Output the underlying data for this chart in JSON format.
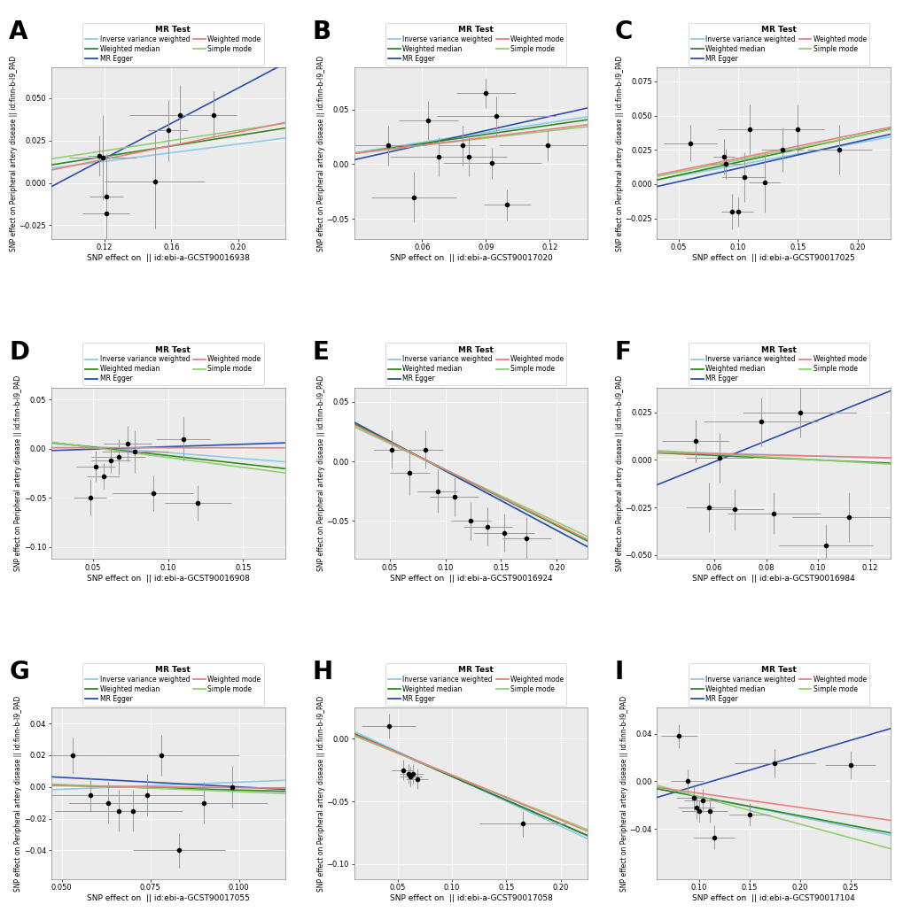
{
  "panels": [
    {
      "label": "A",
      "xlabel": "SNP effect on  || id:ebi-a-GCST90016938",
      "ylabel": "SNP effect on Peripheral artery disease || id:finn-b-I9_PAD",
      "xlim": [
        0.088,
        0.228
      ],
      "ylim": [
        -0.033,
        0.068
      ],
      "xticks": [
        0.12,
        0.16,
        0.2
      ],
      "yticks": [
        -0.025,
        0.0,
        0.025,
        0.05
      ],
      "points": {
        "x": [
          0.117,
          0.119,
          0.121,
          0.121,
          0.15,
          0.158,
          0.165,
          0.185
        ],
        "y": [
          0.016,
          0.015,
          -0.008,
          -0.018,
          0.001,
          0.031,
          0.04,
          0.04
        ],
        "xerr": [
          0.007,
          0.02,
          0.01,
          0.014,
          0.03,
          0.012,
          0.03,
          0.014
        ],
        "yerr": [
          0.012,
          0.025,
          0.025,
          0.018,
          0.028,
          0.018,
          0.018,
          0.014
        ]
      },
      "lines": {
        "ivw": {
          "slope": 0.127,
          "intercept": -0.0025
        },
        "egger": {
          "slope": 0.52,
          "intercept": -0.048
        },
        "wmedian": {
          "slope": 0.155,
          "intercept": -0.003
        },
        "simple": {
          "slope": 0.15,
          "intercept": 0.001
        },
        "wmode": {
          "slope": 0.2,
          "intercept": -0.01
        }
      }
    },
    {
      "label": "B",
      "xlabel": "SNP effect on  || id:ebi-a-GCST90017020",
      "ylabel": "SNP effect on Peripheral artery disease || id:finn-b-I9_PAD",
      "xlim": [
        0.028,
        0.138
      ],
      "ylim": [
        -0.068,
        0.088
      ],
      "xticks": [
        0.06,
        0.09,
        0.12
      ],
      "yticks": [
        -0.05,
        0.0,
        0.05
      ],
      "points": {
        "x": [
          0.044,
          0.056,
          0.063,
          0.068,
          0.079,
          0.082,
          0.09,
          0.093,
          0.095,
          0.1,
          0.119
        ],
        "y": [
          0.017,
          -0.03,
          0.04,
          0.007,
          0.017,
          0.007,
          0.065,
          0.001,
          0.044,
          -0.037,
          0.017
        ],
        "xerr": [
          0.018,
          0.02,
          0.014,
          0.023,
          0.011,
          0.018,
          0.014,
          0.023,
          0.028,
          0.011,
          0.023
        ],
        "yerr": [
          0.018,
          0.023,
          0.018,
          0.018,
          0.018,
          0.018,
          0.014,
          0.014,
          0.018,
          0.014,
          0.014
        ]
      },
      "lines": {
        "ivw": {
          "slope": 0.3,
          "intercept": 0.002
        },
        "egger": {
          "slope": 0.43,
          "intercept": -0.008
        },
        "wmedian": {
          "slope": 0.28,
          "intercept": 0.002
        },
        "simple": {
          "slope": 0.22,
          "intercept": 0.004
        },
        "wmode": {
          "slope": 0.24,
          "intercept": 0.003
        }
      }
    },
    {
      "label": "C",
      "xlabel": "SNP effect on  || id:ebi-a-GCST90017025",
      "ylabel": "SNP effect on Peripheral artery disease || id:finn-b-I9_PAD",
      "xlim": [
        0.032,
        0.228
      ],
      "ylim": [
        -0.04,
        0.085
      ],
      "xticks": [
        0.05,
        0.1,
        0.15,
        0.2
      ],
      "yticks": [
        -0.025,
        0.0,
        0.025,
        0.05,
        0.075
      ],
      "points": {
        "x": [
          0.06,
          0.088,
          0.09,
          0.095,
          0.1,
          0.105,
          0.11,
          0.122,
          0.137,
          0.15,
          0.185
        ],
        "y": [
          0.03,
          0.02,
          0.015,
          -0.02,
          -0.02,
          0.005,
          0.04,
          0.001,
          0.025,
          0.04,
          0.025
        ],
        "xerr": [
          0.022,
          0.009,
          0.013,
          0.009,
          0.013,
          0.018,
          0.027,
          0.013,
          0.018,
          0.022,
          0.027
        ],
        "yerr": [
          0.013,
          0.013,
          0.011,
          0.013,
          0.011,
          0.018,
          0.018,
          0.022,
          0.016,
          0.018,
          0.018
        ]
      },
      "lines": {
        "ivw": {
          "slope": 0.16,
          "intercept": -0.002
        },
        "egger": {
          "slope": 0.195,
          "intercept": -0.008
        },
        "wmedian": {
          "slope": 0.19,
          "intercept": -0.003
        },
        "simple": {
          "slope": 0.175,
          "intercept": 0.0
        },
        "wmode": {
          "slope": 0.178,
          "intercept": 0.001
        }
      }
    },
    {
      "label": "D",
      "xlabel": "SNP effect on  || id:ebi-a-GCST90016908",
      "ylabel": "SNP effect on Peripheral artery disease || id:finn-b-I9_PAD",
      "xlim": [
        0.022,
        0.178
      ],
      "ylim": [
        -0.112,
        0.062
      ],
      "xticks": [
        0.05,
        0.1,
        0.15
      ],
      "yticks": [
        -0.1,
        -0.05,
        0.0,
        0.05
      ],
      "points": {
        "x": [
          0.048,
          0.052,
          0.057,
          0.062,
          0.067,
          0.073,
          0.078,
          0.09,
          0.11,
          0.12
        ],
        "y": [
          -0.05,
          -0.018,
          -0.028,
          -0.012,
          -0.008,
          0.005,
          -0.003,
          -0.045,
          0.01,
          -0.055
        ],
        "xerr": [
          0.011,
          0.013,
          0.011,
          0.013,
          0.018,
          0.016,
          0.022,
          0.027,
          0.018,
          0.022
        ],
        "yerr": [
          0.018,
          0.016,
          0.013,
          0.013,
          0.018,
          0.018,
          0.022,
          0.018,
          0.022,
          0.018
        ]
      },
      "lines": {
        "ivw": {
          "slope": -0.12,
          "intercept": 0.008
        },
        "egger": {
          "slope": 0.05,
          "intercept": -0.003
        },
        "wmedian": {
          "slope": -0.17,
          "intercept": 0.01
        },
        "simple": {
          "slope": -0.2,
          "intercept": 0.011
        },
        "wmode": {
          "slope": -0.001,
          "intercept": 0.001
        }
      }
    },
    {
      "label": "E",
      "xlabel": "SNP effect on  || id:ebi-a-GCST90016924",
      "ylabel": "SNP effect on Peripheral artery disease || id:finn-b-I9_PAD",
      "xlim": [
        0.018,
        0.228
      ],
      "ylim": [
        -0.082,
        0.062
      ],
      "xticks": [
        0.05,
        0.1,
        0.15,
        0.2
      ],
      "yticks": [
        -0.05,
        0.0,
        0.05
      ],
      "points": {
        "x": [
          0.052,
          0.068,
          0.082,
          0.093,
          0.108,
          0.123,
          0.138,
          0.153,
          0.173
        ],
        "y": [
          0.01,
          -0.01,
          0.01,
          -0.025,
          -0.03,
          -0.05,
          -0.055,
          -0.06,
          -0.065
        ],
        "xerr": [
          0.016,
          0.018,
          0.016,
          0.018,
          0.022,
          0.018,
          0.022,
          0.027,
          0.022
        ],
        "yerr": [
          0.016,
          0.018,
          0.016,
          0.018,
          0.016,
          0.016,
          0.016,
          0.016,
          0.018
        ]
      },
      "lines": {
        "ivw": {
          "slope": -0.5,
          "intercept": 0.042
        },
        "egger": {
          "slope": -0.5,
          "intercept": 0.042
        },
        "wmedian": {
          "slope": -0.47,
          "intercept": 0.04
        },
        "simple": {
          "slope": -0.44,
          "intercept": 0.037
        },
        "wmode": {
          "slope": -0.46,
          "intercept": 0.039
        }
      }
    },
    {
      "label": "F",
      "xlabel": "SNP effect on  || id:ebi-a-GCST90016984",
      "ylabel": "SNP effect on Peripheral artery disease || id:finn-b-I9_PAD",
      "xlim": [
        0.038,
        0.128
      ],
      "ylim": [
        -0.052,
        0.038
      ],
      "xticks": [
        0.06,
        0.08,
        0.1,
        0.12
      ],
      "yticks": [
        -0.05,
        -0.025,
        0.0,
        0.025
      ],
      "points": {
        "x": [
          0.053,
          0.058,
          0.062,
          0.068,
          0.078,
          0.083,
          0.093,
          0.103,
          0.112
        ],
        "y": [
          0.01,
          -0.025,
          0.001,
          -0.026,
          0.02,
          -0.028,
          0.025,
          -0.045,
          -0.03
        ],
        "xerr": [
          0.013,
          0.009,
          0.013,
          0.011,
          0.022,
          0.018,
          0.022,
          0.018,
          0.022
        ],
        "yerr": [
          0.011,
          0.013,
          0.013,
          0.011,
          0.013,
          0.011,
          0.013,
          0.011,
          0.013
        ]
      },
      "lines": {
        "ivw": {
          "slope": -0.04,
          "intercept": 0.006
        },
        "egger": {
          "slope": 0.55,
          "intercept": -0.034
        },
        "wmedian": {
          "slope": -0.06,
          "intercept": 0.006
        },
        "simple": {
          "slope": -0.08,
          "intercept": 0.008
        },
        "wmode": {
          "slope": -0.03,
          "intercept": 0.005
        }
      }
    },
    {
      "label": "G",
      "xlabel": "SNP effect on  || id:ebi-a-GCST90017055",
      "ylabel": "SNP effect on Peripheral artery disease || id:finn-b-I9_PAD",
      "xlim": [
        0.047,
        0.113
      ],
      "ylim": [
        -0.058,
        0.05
      ],
      "xticks": [
        0.05,
        0.075,
        0.1
      ],
      "yticks": [
        -0.04,
        -0.02,
        0.0,
        0.02,
        0.04
      ],
      "points": {
        "x": [
          0.053,
          0.058,
          0.063,
          0.066,
          0.07,
          0.074,
          0.078,
          0.083,
          0.09,
          0.098
        ],
        "y": [
          0.02,
          -0.005,
          -0.01,
          -0.015,
          -0.015,
          -0.005,
          0.02,
          -0.04,
          -0.01,
          0.0
        ],
        "xerr": [
          0.009,
          0.013,
          0.011,
          0.018,
          0.013,
          0.016,
          0.022,
          0.013,
          0.018,
          0.018
        ],
        "yerr": [
          0.011,
          0.011,
          0.013,
          0.013,
          0.013,
          0.013,
          0.013,
          0.011,
          0.013,
          0.013
        ]
      },
      "lines": {
        "ivw": {
          "slope": 0.09,
          "intercept": -0.006
        },
        "egger": {
          "slope": -0.12,
          "intercept": 0.012
        },
        "wmedian": {
          "slope": -0.06,
          "intercept": 0.004
        },
        "simple": {
          "slope": -0.09,
          "intercept": 0.006
        },
        "wmode": {
          "slope": -0.025,
          "intercept": 0.002
        }
      }
    },
    {
      "label": "H",
      "xlabel": "SNP effect on  || id:ebi-a-GCST90017058",
      "ylabel": "SNP effect on Peripheral artery disease || id:finn-b-I9_PAD",
      "xlim": [
        0.01,
        0.225
      ],
      "ylim": [
        -0.112,
        0.025
      ],
      "xticks": [
        0.05,
        0.1,
        0.15,
        0.2
      ],
      "yticks": [
        -0.1,
        -0.05,
        0.0
      ],
      "points": {
        "x": [
          0.042,
          0.055,
          0.06,
          0.062,
          0.064,
          0.068,
          0.165
        ],
        "y": [
          0.01,
          -0.025,
          -0.028,
          -0.03,
          -0.028,
          -0.032,
          -0.068
        ],
        "xerr": [
          0.025,
          0.01,
          0.008,
          0.01,
          0.01,
          0.01,
          0.04
        ],
        "yerr": [
          0.01,
          0.008,
          0.008,
          0.008,
          0.008,
          0.008,
          0.01
        ]
      },
      "lines": {
        "ivw": {
          "slope": -0.4,
          "intercept": 0.01
        },
        "egger": {
          "slope": -0.38,
          "intercept": 0.008
        },
        "wmedian": {
          "slope": -0.38,
          "intercept": 0.008
        },
        "simple": {
          "slope": -0.35,
          "intercept": 0.006
        },
        "wmode": {
          "slope": -0.36,
          "intercept": 0.007
        }
      }
    },
    {
      "label": "I",
      "xlabel": "SNP effect on  || id:ebi-a-GCST90017104",
      "ylabel": "SNP effect on Peripheral artery disease || id:finn-b-I9_PAD",
      "xlim": [
        0.058,
        0.29
      ],
      "ylim": [
        -0.082,
        0.062
      ],
      "xticks": [
        0.1,
        0.15,
        0.2,
        0.25
      ],
      "yticks": [
        -0.04,
        0.0,
        0.04
      ],
      "points": {
        "x": [
          0.08,
          0.088,
          0.095,
          0.097,
          0.1,
          0.103,
          0.11,
          0.115,
          0.15,
          0.175,
          0.25
        ],
        "y": [
          0.038,
          0.0,
          -0.014,
          -0.022,
          -0.025,
          -0.016,
          -0.025,
          -0.047,
          -0.028,
          0.015,
          0.014
        ],
        "xerr": [
          0.018,
          0.016,
          0.018,
          0.018,
          0.018,
          0.018,
          0.018,
          0.02,
          0.02,
          0.04,
          0.025
        ],
        "yerr": [
          0.01,
          0.01,
          0.01,
          0.01,
          0.01,
          0.01,
          0.01,
          0.01,
          0.01,
          0.012,
          0.012
        ]
      },
      "lines": {
        "ivw": {
          "slope": -0.17,
          "intercept": 0.004
        },
        "egger": {
          "slope": 0.25,
          "intercept": -0.028
        },
        "wmedian": {
          "slope": -0.16,
          "intercept": 0.003
        },
        "simple": {
          "slope": -0.23,
          "intercept": 0.01
        },
        "wmode": {
          "slope": -0.12,
          "intercept": 0.002
        }
      }
    }
  ],
  "colors": {
    "ivw": "#8ECAE6",
    "egger": "#2B4EAE",
    "wmedian": "#2D8B22",
    "simple": "#90D070",
    "wmode": "#E88080"
  },
  "bg_color": "#EBEBEB",
  "grid_color": "#FFFFFF",
  "point_color": "#000000",
  "fig_bg": "#FFFFFF",
  "legend_title": "MR Test"
}
